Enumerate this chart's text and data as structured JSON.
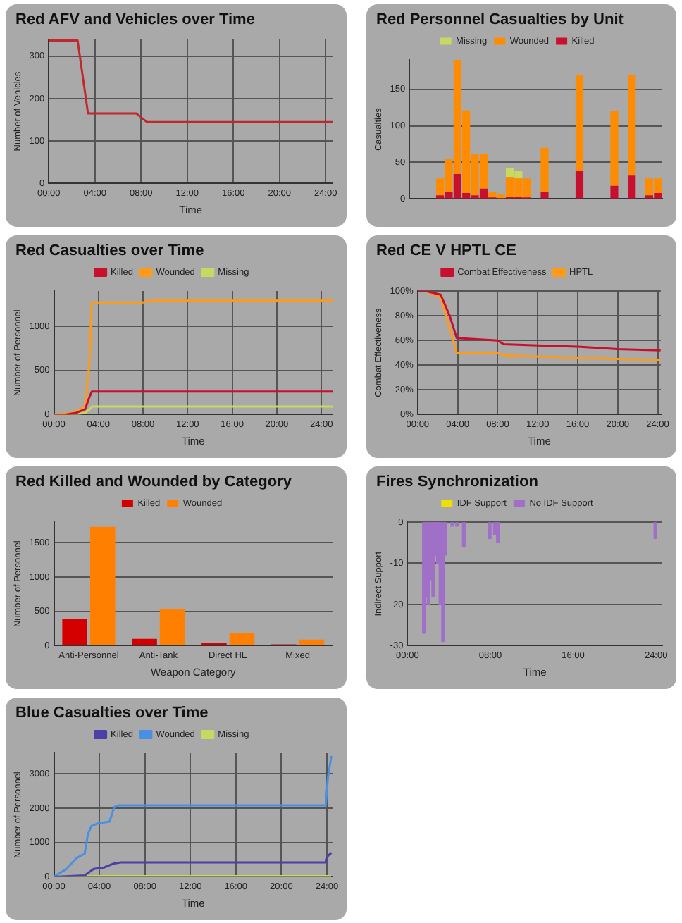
{
  "chart_data": [
    {
      "type": "line",
      "title": "Red AFV and Vehicles over Time",
      "xlabel": "Time",
      "ylabel": "Number of Vehicles",
      "grid": true,
      "x": [
        0,
        2.5,
        3.4,
        7.6,
        8.5,
        24.6
      ],
      "series": [
        {
          "color": "#c0282d",
          "values": [
            337,
            337,
            165,
            165,
            145,
            145
          ]
        }
      ],
      "xlim": [
        0,
        24.6
      ],
      "xticks": [
        {
          "value": 0,
          "label": "00:00"
        },
        {
          "value": 4,
          "label": "04:00"
        },
        {
          "value": 8,
          "label": "08:00"
        },
        {
          "value": 12,
          "label": "12:00"
        },
        {
          "value": 16,
          "label": "16:00"
        },
        {
          "value": 20,
          "label": "20:00"
        },
        {
          "value": 24,
          "label": "24:00"
        }
      ],
      "ylim": [
        0,
        340
      ],
      "yticks": [
        0,
        100,
        200,
        300
      ]
    },
    {
      "type": "bar",
      "title": "Red Personnel Casualties by Unit",
      "ylabel": "Casualties",
      "stacked": true,
      "grid": "y",
      "legend": "top",
      "categories": [
        null,
        null,
        null,
        null,
        null,
        null,
        null,
        null,
        null,
        null,
        null,
        null,
        null,
        null,
        null,
        null,
        null,
        null,
        null,
        null,
        null,
        null,
        null,
        null,
        null,
        null,
        null,
        null,
        null
      ],
      "series": [
        {
          "name": "Killed",
          "color": "#c8102e",
          "values": [
            null,
            null,
            null,
            5,
            10,
            34,
            8,
            5,
            14,
            2,
            1,
            3,
            3,
            2,
            null,
            10,
            null,
            null,
            null,
            38,
            null,
            null,
            null,
            18,
            null,
            32,
            null,
            5,
            8
          ]
        },
        {
          "name": "Wounded",
          "color": "#ff8c00",
          "values": [
            null,
            null,
            null,
            23,
            45,
            156,
            113,
            57,
            48,
            8,
            5,
            27,
            25,
            26,
            null,
            60,
            null,
            null,
            null,
            131,
            null,
            null,
            null,
            102,
            null,
            137,
            null,
            23,
            20
          ]
        },
        {
          "name": "Missing",
          "color": "#c8d860",
          "values": [
            null,
            null,
            null,
            null,
            null,
            null,
            null,
            null,
            null,
            null,
            null,
            12,
            10,
            null,
            null,
            null,
            null,
            null,
            null,
            null,
            null,
            null,
            null,
            null,
            null,
            null,
            null,
            null,
            null
          ]
        }
      ],
      "ylim": [
        0,
        190
      ],
      "yticks": [
        0,
        50,
        100,
        150
      ]
    },
    {
      "type": "line",
      "title": "Red Casualties over Time",
      "xlabel": "Time",
      "ylabel": "Number of Personnel",
      "grid": true,
      "legend": "top",
      "x": [
        0,
        1,
        2,
        2.8,
        3.2,
        3.4,
        8,
        8.6,
        25
      ],
      "series": [
        {
          "name": "Killed",
          "color": "#c8102e",
          "values": [
            0,
            0,
            20,
            60,
            200,
            260,
            260,
            260,
            260
          ]
        },
        {
          "name": "Wounded",
          "color": "#ff9a1a",
          "values": [
            0,
            10,
            30,
            100,
            600,
            1270,
            1270,
            1290,
            1290
          ]
        },
        {
          "name": "Missing",
          "color": "#c8d860",
          "values": [
            0,
            0,
            0,
            20,
            60,
            90,
            90,
            90,
            90
          ]
        }
      ],
      "xlim": [
        0,
        25
      ],
      "xticks": [
        {
          "value": 0,
          "label": "00:00"
        },
        {
          "value": 4,
          "label": "04:00"
        },
        {
          "value": 8,
          "label": "08:00"
        },
        {
          "value": 12,
          "label": "12:00"
        },
        {
          "value": 16,
          "label": "16:00"
        },
        {
          "value": 20,
          "label": "20:00"
        },
        {
          "value": 24,
          "label": "24:00"
        }
      ],
      "ylim": [
        0,
        1400
      ],
      "yticks": [
        0,
        500,
        1000
      ]
    },
    {
      "type": "line",
      "title": "Red CE V HPTL CE",
      "xlabel": "Time",
      "ylabel": "Combat Effectiveness",
      "grid": true,
      "legend": "top",
      "x": [
        0,
        0.8,
        2.3,
        3.2,
        3.9,
        8,
        8.6,
        12,
        16,
        20,
        24.3
      ],
      "series": [
        {
          "name": "Combat Effectiveness",
          "color": "#c8102e",
          "values": [
            100,
            100,
            97,
            80,
            62,
            60,
            57,
            56,
            55,
            53,
            52
          ]
        },
        {
          "name": "HPTL",
          "color": "#ff9a1a",
          "values": [
            100,
            100,
            95,
            70,
            50,
            50,
            48,
            47,
            46,
            45,
            44
          ]
        }
      ],
      "xlim": [
        0,
        24.3
      ],
      "xticks": [
        {
          "value": 0,
          "label": "00:00"
        },
        {
          "value": 4,
          "label": "04:00"
        },
        {
          "value": 8,
          "label": "08:00"
        },
        {
          "value": 12,
          "label": "12:00"
        },
        {
          "value": 16,
          "label": "16:00"
        },
        {
          "value": 20,
          "label": "20:00"
        },
        {
          "value": 24,
          "label": "24:00"
        }
      ],
      "ylim": [
        0,
        100
      ],
      "yticks": [
        {
          "value": 0,
          "label": "0%"
        },
        {
          "value": 20,
          "label": "20%"
        },
        {
          "value": 40,
          "label": "40%"
        },
        {
          "value": 60,
          "label": "60%"
        },
        {
          "value": 80,
          "label": "80%"
        },
        {
          "value": 100,
          "label": "100%"
        }
      ]
    },
    {
      "type": "bar",
      "title": "Red Killed and Wounded by Category",
      "xlabel": "Weapon Category",
      "ylabel": "Number of Personnel",
      "grid": "y",
      "legend": "top",
      "categories": [
        "Anti-Personnel",
        "Anti-Tank",
        "Direct HE",
        "Mixed"
      ],
      "series": [
        {
          "name": "Killed",
          "color": "#d40000",
          "values": [
            390,
            100,
            40,
            20
          ]
        },
        {
          "name": "Wounded",
          "color": "#ff8000",
          "values": [
            1730,
            530,
            180,
            90
          ]
        }
      ],
      "ylim": [
        0,
        1800
      ],
      "yticks": [
        0,
        500,
        1000,
        1500
      ]
    },
    {
      "type": "bar",
      "title": "Fires Synchronization",
      "xlabel": "Time",
      "ylabel": "Indirect Support",
      "grid": "y",
      "legend": "top",
      "x": [
        1.45,
        1.7,
        1.9,
        2.1,
        2.35,
        2.6,
        2.8,
        3.05,
        3.3,
        3.5,
        4.2,
        4.65,
        5.3,
        7.8,
        8.3,
        8.6,
        23.8
      ],
      "series": [
        {
          "name": "IDF Support",
          "color": "#f0e000",
          "values": [
            null,
            null,
            null,
            null,
            null,
            null,
            null,
            null,
            null,
            null,
            null,
            null,
            null,
            null,
            null,
            null,
            null
          ]
        },
        {
          "name": "No IDF Support",
          "color": "#a070c8",
          "values": [
            -27,
            -18,
            -20,
            -14,
            -18,
            -8,
            -10,
            -20,
            -29,
            -8,
            -1,
            -1,
            -6,
            -4,
            -3,
            -5,
            -4
          ]
        }
      ],
      "xlim": [
        0,
        24.6
      ],
      "xticks": [
        {
          "value": 0,
          "label": "00:00"
        },
        {
          "value": 8,
          "label": "08:00"
        },
        {
          "value": 16,
          "label": "16:00"
        },
        {
          "value": 24,
          "label": "24:00"
        }
      ],
      "ylim": [
        -30,
        0
      ],
      "yticks": [
        -30,
        -20,
        -10,
        0
      ]
    },
    {
      "type": "line",
      "title": "Blue Casualties over Time",
      "xlabel": "Time",
      "ylabel": "Number of Personnel",
      "grid": true,
      "legend": "top",
      "series": [
        {
          "name": "Killed",
          "color": "#4b3fa8",
          "x": [
            0,
            2.7,
            3.5,
            4.4,
            5.3,
            5.9,
            23.9,
            24.1,
            24.4
          ],
          "values": [
            0,
            40,
            230,
            270,
            390,
            420,
            420,
            610,
            700
          ]
        },
        {
          "name": "Wounded",
          "color": "#4a90e2",
          "x": [
            0,
            1.1,
            2,
            2.7,
            3,
            3.3,
            3.9,
            4.9,
            5.3,
            5.7,
            23.9,
            24.1,
            24.4
          ],
          "values": [
            0,
            230,
            550,
            670,
            1250,
            1480,
            1560,
            1610,
            2030,
            2080,
            2080,
            2900,
            3520
          ]
        },
        {
          "name": "Missing",
          "color": "#c8d860",
          "x": [
            0,
            4,
            24.4
          ],
          "values": [
            0,
            20,
            20
          ]
        }
      ],
      "xlim": [
        0,
        24.5
      ],
      "xticks": [
        {
          "value": 0,
          "label": "00:00"
        },
        {
          "value": 4,
          "label": "04:00"
        },
        {
          "value": 8,
          "label": "08:00"
        },
        {
          "value": 12,
          "label": "12:00"
        },
        {
          "value": 16,
          "label": "16:00"
        },
        {
          "value": 20,
          "label": "20:00"
        },
        {
          "value": 24,
          "label": "24:00"
        }
      ],
      "ylim": [
        0,
        3600
      ],
      "yticks": [
        0,
        1000,
        2000,
        3000
      ]
    }
  ]
}
